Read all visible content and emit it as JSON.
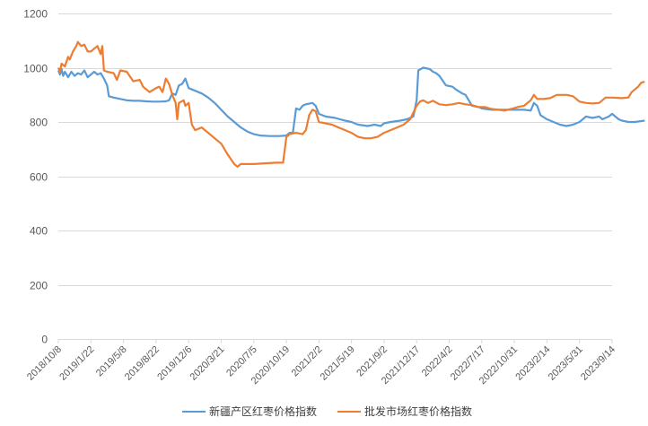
{
  "chart_data": {
    "type": "line",
    "title": "",
    "xlabel": "",
    "ylabel": "",
    "ylim": [
      0,
      1200
    ],
    "yticks": [
      0,
      200,
      400,
      600,
      800,
      1000,
      1200
    ],
    "grid": true,
    "legend_position": "bottom",
    "categories": [
      "2018/10/8",
      "2019/1/22",
      "2019/5/8",
      "2019/8/22",
      "2019/12/6",
      "2020/3/21",
      "2020/7/5",
      "2020/10/19",
      "2021/2/2",
      "2021/5/19",
      "2021/9/2",
      "2021/12/17",
      "2022/4/2",
      "2022/7/17",
      "2022/10/31",
      "2023/2/14",
      "2023/5/31",
      "2023/9/14"
    ],
    "series": [
      {
        "name": "新疆产区红枣价格指数",
        "color": "#5B9BD5",
        "points": [
          [
            0,
            990
          ],
          [
            0.05,
            975
          ],
          [
            0.1,
            995
          ],
          [
            0.15,
            970
          ],
          [
            0.2,
            985
          ],
          [
            0.3,
            965
          ],
          [
            0.4,
            985
          ],
          [
            0.5,
            970
          ],
          [
            0.6,
            980
          ],
          [
            0.7,
            975
          ],
          [
            0.8,
            990
          ],
          [
            0.9,
            965
          ],
          [
            1.0,
            975
          ],
          [
            1.1,
            985
          ],
          [
            1.2,
            975
          ],
          [
            1.3,
            980
          ],
          [
            1.4,
            960
          ],
          [
            1.5,
            935
          ],
          [
            1.55,
            895
          ],
          [
            1.7,
            890
          ],
          [
            1.9,
            885
          ],
          [
            2.1,
            880
          ],
          [
            2.3,
            878
          ],
          [
            2.5,
            878
          ],
          [
            2.7,
            876
          ],
          [
            2.9,
            875
          ],
          [
            3.1,
            875
          ],
          [
            3.3,
            876
          ],
          [
            3.4,
            880
          ],
          [
            3.5,
            905
          ],
          [
            3.6,
            900
          ],
          [
            3.7,
            935
          ],
          [
            3.8,
            940
          ],
          [
            3.9,
            960
          ],
          [
            4.0,
            925
          ],
          [
            4.2,
            915
          ],
          [
            4.4,
            905
          ],
          [
            4.6,
            890
          ],
          [
            4.8,
            870
          ],
          [
            5.0,
            845
          ],
          [
            5.2,
            820
          ],
          [
            5.4,
            800
          ],
          [
            5.6,
            780
          ],
          [
            5.8,
            765
          ],
          [
            6.0,
            755
          ],
          [
            6.2,
            750
          ],
          [
            6.5,
            748
          ],
          [
            6.8,
            748
          ],
          [
            7.0,
            750
          ],
          [
            7.1,
            760
          ],
          [
            7.2,
            760
          ],
          [
            7.3,
            850
          ],
          [
            7.4,
            845
          ],
          [
            7.5,
            860
          ],
          [
            7.6,
            865
          ],
          [
            7.8,
            870
          ],
          [
            7.9,
            860
          ],
          [
            8.0,
            830
          ],
          [
            8.2,
            820
          ],
          [
            8.5,
            815
          ],
          [
            8.8,
            805
          ],
          [
            9.0,
            800
          ],
          [
            9.2,
            790
          ],
          [
            9.5,
            785
          ],
          [
            9.7,
            790
          ],
          [
            9.9,
            785
          ],
          [
            10.0,
            795
          ],
          [
            10.2,
            800
          ],
          [
            10.5,
            805
          ],
          [
            10.7,
            810
          ],
          [
            10.9,
            820
          ],
          [
            11.0,
            880
          ],
          [
            11.05,
            990
          ],
          [
            11.2,
            1000
          ],
          [
            11.4,
            995
          ],
          [
            11.5,
            985
          ],
          [
            11.6,
            980
          ],
          [
            11.7,
            970
          ],
          [
            11.9,
            935
          ],
          [
            12.1,
            930
          ],
          [
            12.2,
            920
          ],
          [
            12.4,
            905
          ],
          [
            12.5,
            900
          ],
          [
            12.6,
            880
          ],
          [
            12.7,
            860
          ],
          [
            12.9,
            855
          ],
          [
            13.0,
            850
          ],
          [
            13.3,
            845
          ],
          [
            13.6,
            845
          ],
          [
            14.0,
            845
          ],
          [
            14.3,
            845
          ],
          [
            14.5,
            842
          ],
          [
            14.6,
            870
          ],
          [
            14.7,
            860
          ],
          [
            14.8,
            825
          ],
          [
            15.0,
            810
          ],
          [
            15.2,
            800
          ],
          [
            15.4,
            790
          ],
          [
            15.6,
            785
          ],
          [
            15.8,
            790
          ],
          [
            16.0,
            800
          ],
          [
            16.2,
            820
          ],
          [
            16.4,
            815
          ],
          [
            16.6,
            820
          ],
          [
            16.7,
            810
          ],
          [
            16.9,
            820
          ],
          [
            17.0,
            830
          ],
          [
            17.2,
            810
          ],
          [
            17.3,
            805
          ],
          [
            17.5,
            800
          ],
          [
            17.7,
            800
          ],
          [
            18.0,
            805
          ]
        ]
      },
      {
        "name": "批发市场红枣价格指数",
        "color": "#ED7D31",
        "points": [
          [
            0,
            1000
          ],
          [
            0.05,
            985
          ],
          [
            0.1,
            1015
          ],
          [
            0.2,
            1005
          ],
          [
            0.3,
            1040
          ],
          [
            0.35,
            1030
          ],
          [
            0.45,
            1060
          ],
          [
            0.55,
            1080
          ],
          [
            0.6,
            1095
          ],
          [
            0.7,
            1080
          ],
          [
            0.8,
            1085
          ],
          [
            0.9,
            1060
          ],
          [
            1.0,
            1060
          ],
          [
            1.1,
            1070
          ],
          [
            1.2,
            1080
          ],
          [
            1.3,
            1050
          ],
          [
            1.35,
            1080
          ],
          [
            1.4,
            990
          ],
          [
            1.5,
            985
          ],
          [
            1.7,
            980
          ],
          [
            1.8,
            955
          ],
          [
            1.9,
            990
          ],
          [
            2.1,
            985
          ],
          [
            2.3,
            950
          ],
          [
            2.5,
            955
          ],
          [
            2.6,
            930
          ],
          [
            2.8,
            910
          ],
          [
            3.0,
            925
          ],
          [
            3.1,
            930
          ],
          [
            3.2,
            910
          ],
          [
            3.3,
            960
          ],
          [
            3.4,
            940
          ],
          [
            3.5,
            900
          ],
          [
            3.6,
            870
          ],
          [
            3.65,
            810
          ],
          [
            3.7,
            870
          ],
          [
            3.85,
            880
          ],
          [
            3.9,
            860
          ],
          [
            4.0,
            870
          ],
          [
            4.1,
            790
          ],
          [
            4.2,
            770
          ],
          [
            4.4,
            780
          ],
          [
            4.6,
            760
          ],
          [
            4.8,
            740
          ],
          [
            5.0,
            720
          ],
          [
            5.2,
            680
          ],
          [
            5.4,
            645
          ],
          [
            5.5,
            635
          ],
          [
            5.6,
            645
          ],
          [
            6.0,
            645
          ],
          [
            6.4,
            648
          ],
          [
            6.7,
            650
          ],
          [
            6.9,
            650
          ],
          [
            7.0,
            745
          ],
          [
            7.1,
            755
          ],
          [
            7.3,
            760
          ],
          [
            7.5,
            755
          ],
          [
            7.6,
            770
          ],
          [
            7.7,
            825
          ],
          [
            7.8,
            845
          ],
          [
            7.9,
            840
          ],
          [
            8.0,
            800
          ],
          [
            8.2,
            795
          ],
          [
            8.4,
            790
          ],
          [
            8.6,
            780
          ],
          [
            8.8,
            770
          ],
          [
            9.0,
            760
          ],
          [
            9.2,
            745
          ],
          [
            9.4,
            740
          ],
          [
            9.6,
            740
          ],
          [
            9.8,
            745
          ],
          [
            10.0,
            760
          ],
          [
            10.2,
            770
          ],
          [
            10.4,
            780
          ],
          [
            10.6,
            790
          ],
          [
            10.8,
            810
          ],
          [
            11.0,
            860
          ],
          [
            11.1,
            875
          ],
          [
            11.2,
            880
          ],
          [
            11.35,
            870
          ],
          [
            11.5,
            878
          ],
          [
            11.7,
            865
          ],
          [
            11.9,
            862
          ],
          [
            12.1,
            865
          ],
          [
            12.3,
            870
          ],
          [
            12.5,
            865
          ],
          [
            12.7,
            862
          ],
          [
            12.9,
            855
          ],
          [
            13.1,
            855
          ],
          [
            13.3,
            848
          ],
          [
            13.5,
            845
          ],
          [
            13.7,
            842
          ],
          [
            13.9,
            848
          ],
          [
            14.1,
            855
          ],
          [
            14.3,
            860
          ],
          [
            14.5,
            880
          ],
          [
            14.6,
            900
          ],
          [
            14.7,
            885
          ],
          [
            14.9,
            885
          ],
          [
            15.1,
            888
          ],
          [
            15.3,
            900
          ],
          [
            15.6,
            900
          ],
          [
            15.8,
            895
          ],
          [
            16.0,
            875
          ],
          [
            16.2,
            870
          ],
          [
            16.4,
            868
          ],
          [
            16.6,
            870
          ],
          [
            16.8,
            890
          ],
          [
            17.0,
            890
          ],
          [
            17.3,
            888
          ],
          [
            17.5,
            890
          ],
          [
            17.6,
            910
          ],
          [
            17.7,
            920
          ],
          [
            17.8,
            930
          ],
          [
            17.9,
            945
          ],
          [
            18.0,
            948
          ]
        ]
      }
    ]
  },
  "legend": {
    "items": [
      {
        "label": "新疆产区红枣价格指数",
        "color": "#5B9BD5"
      },
      {
        "label": "批发市场红枣价格指数",
        "color": "#ED7D31"
      }
    ]
  }
}
